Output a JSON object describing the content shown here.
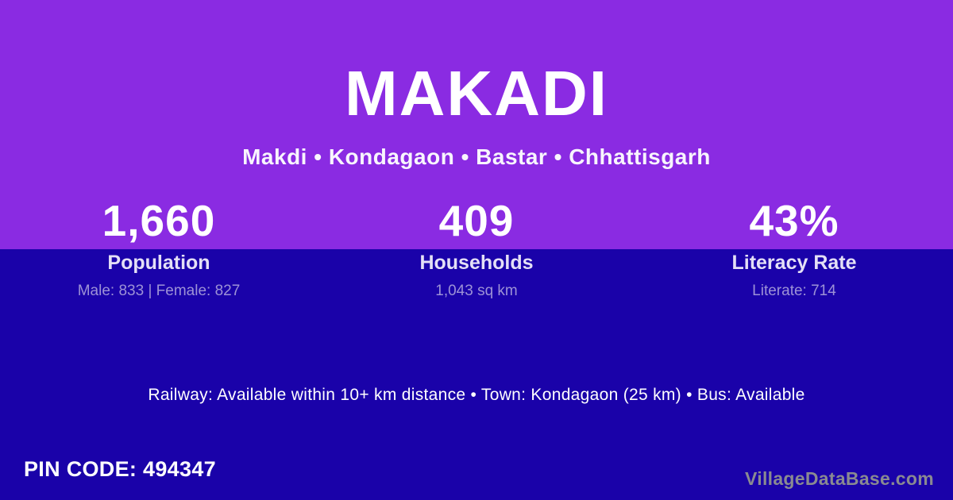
{
  "colors": {
    "top_band": "#8A2BE2",
    "bottom_band": "#1A02A9",
    "stat_label": "#E4E0F6",
    "stat_detail": "#9D92D6",
    "watermark": "#8A8A91"
  },
  "header": {
    "title": "MAKADI",
    "breadcrumb": "Makdi • Kondagaon • Bastar • Chhattisgarh"
  },
  "stats": [
    {
      "value": "1,660",
      "label": "Population",
      "detail": "Male: 833 | Female: 827"
    },
    {
      "value": "409",
      "label": "Households",
      "detail": "1,043 sq km"
    },
    {
      "value": "43%",
      "label": "Literacy Rate",
      "detail": "Literate: 714"
    }
  ],
  "info_line": "Railway: Available within 10+ km distance  •  Town: Kondagaon (25 km)  •  Bus: Available",
  "footer": {
    "pin_code": "PIN CODE: 494347",
    "watermark": "VillageDataBase.com"
  }
}
